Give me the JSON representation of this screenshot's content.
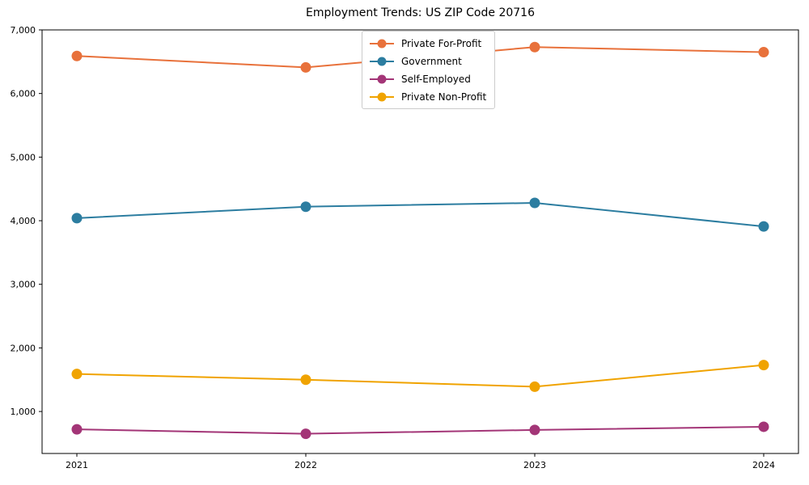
{
  "chart_data": {
    "type": "line",
    "title": "Employment Trends: US ZIP Code 20716",
    "categories": [
      "2021",
      "2022",
      "2023",
      "2024"
    ],
    "series": [
      {
        "name": "Private For-Profit",
        "color": "#E8713B",
        "values": [
          6590,
          6410,
          6730,
          6650
        ]
      },
      {
        "name": "Government",
        "color": "#2C7DA0",
        "values": [
          4040,
          4220,
          4280,
          3910
        ]
      },
      {
        "name": "Self-Employed",
        "color": "#A33577",
        "values": [
          720,
          650,
          710,
          760
        ]
      },
      {
        "name": "Private Non-Profit",
        "color": "#F0A300",
        "values": [
          1590,
          1500,
          1390,
          1730
        ]
      }
    ],
    "xlabel": "",
    "ylabel": "",
    "ylim": [
      340,
      7000
    ],
    "yticks": [
      1000,
      2000,
      3000,
      4000,
      5000,
      6000,
      7000
    ],
    "grid": false,
    "legend_position": "upper center",
    "marker": "o",
    "axis_color": "#000000",
    "background_color": "#ffffff"
  }
}
